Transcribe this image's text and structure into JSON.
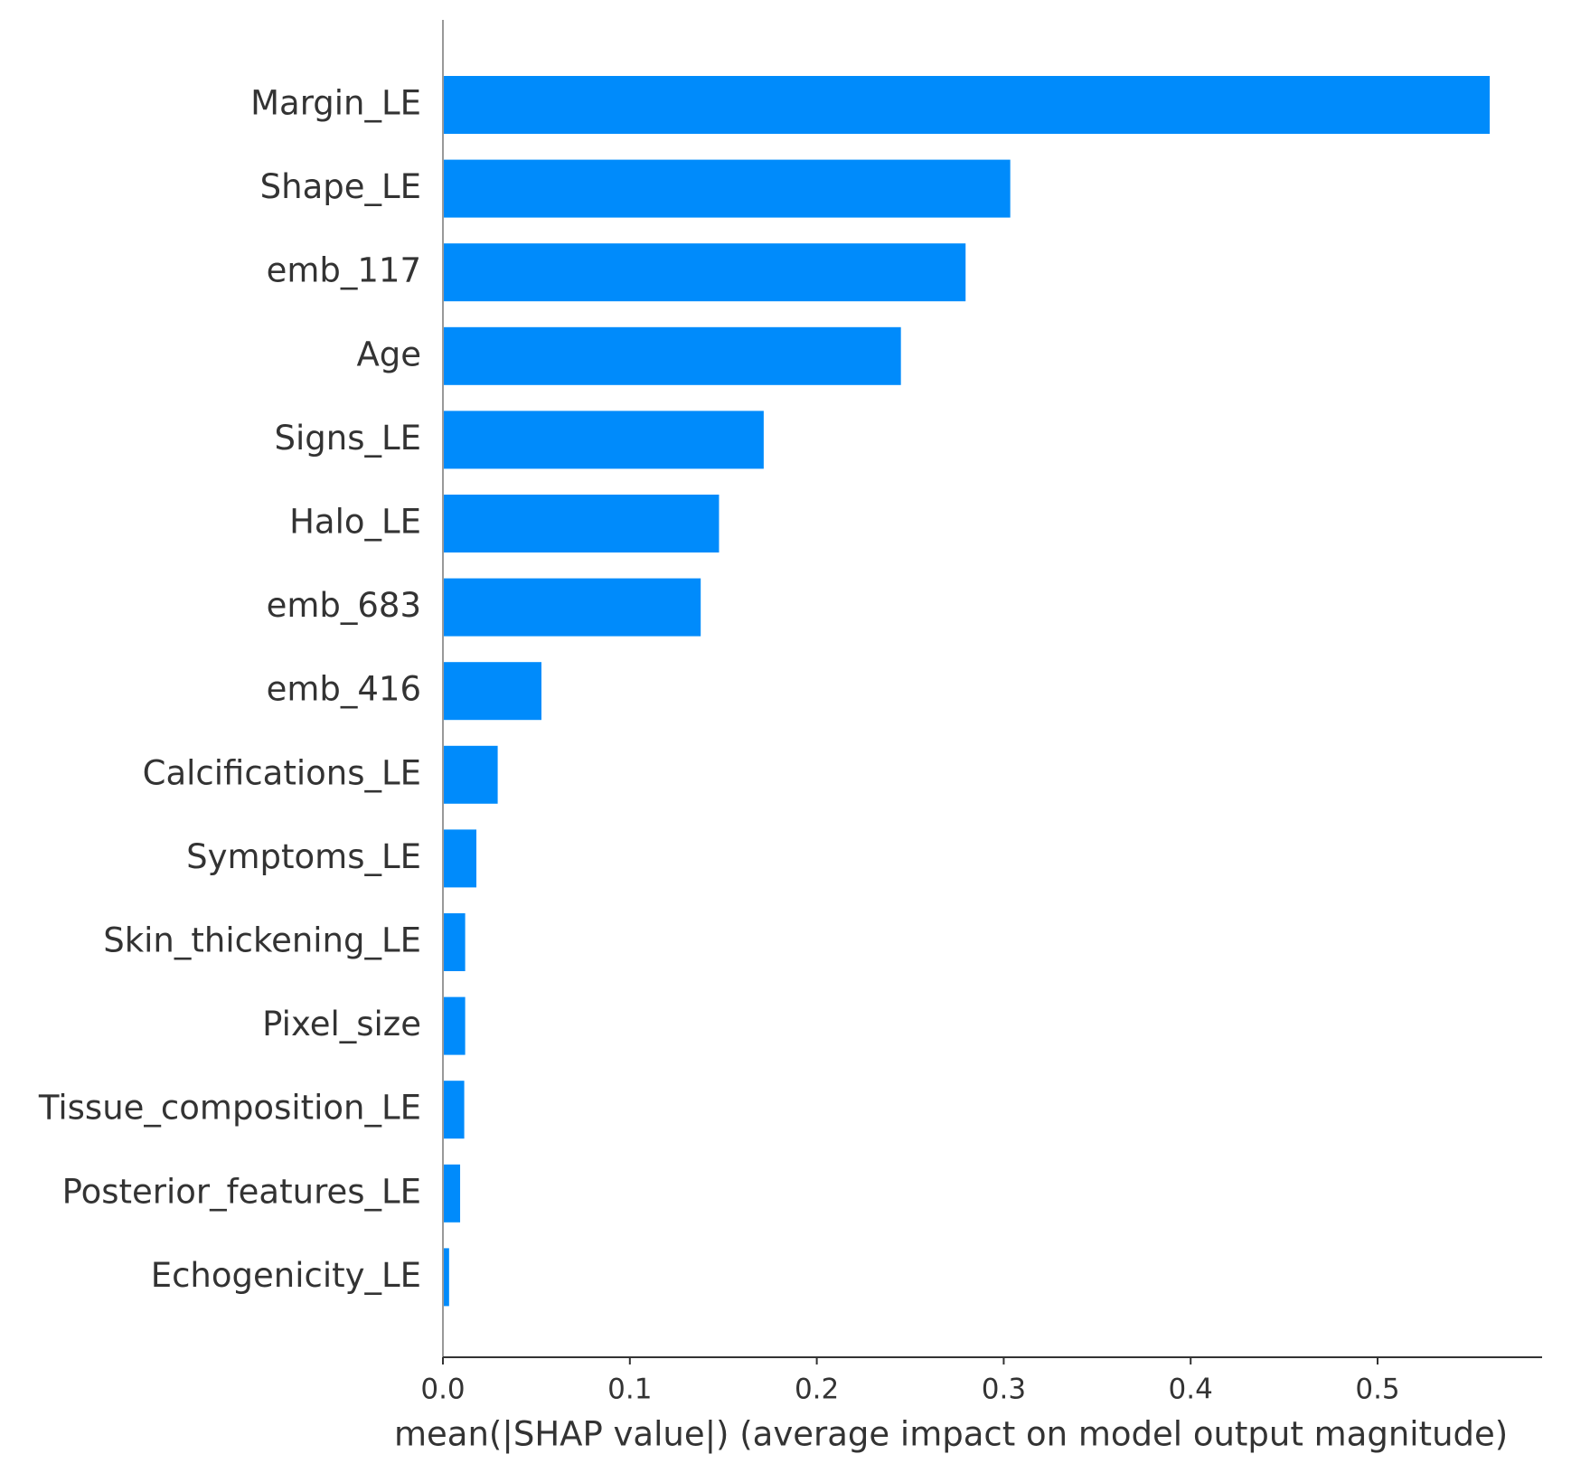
{
  "chart_data": {
    "type": "barh",
    "xlabel": "mean(|SHAP value|) (average impact on model output magnitude)",
    "categories": [
      "Margin_LE",
      "Shape_LE",
      "emb_117",
      "Age",
      "Signs_LE",
      "Halo_LE",
      "emb_683",
      "emb_416",
      "Calcifications_LE",
      "Symptoms_LE",
      "Skin_thickening_LE",
      "Pixel_size",
      "Tissue_composition_LE",
      "Posterior_features_LE",
      "Echogenicity_LE"
    ],
    "values": [
      0.56,
      0.3035,
      0.2796,
      0.245,
      0.1716,
      0.1477,
      0.1379,
      0.0527,
      0.0293,
      0.0179,
      0.0119,
      0.0119,
      0.0114,
      0.0092,
      0.0033
    ],
    "color": "#008bfb",
    "xlim": [
      0,
      0.588
    ],
    "xticks": [
      {
        "value": 0,
        "label": "0.0"
      },
      0.1,
      0.2,
      0.3,
      0.4,
      0.5
    ]
  }
}
